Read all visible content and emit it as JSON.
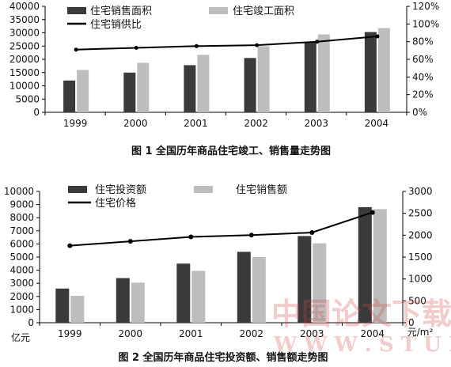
{
  "chart_data": [
    {
      "type": "bar",
      "caption": "图 1   全国历年商品住宅竣工、销售量走势图",
      "categories": [
        "1999",
        "2000",
        "2001",
        "2002",
        "2003",
        "2004"
      ],
      "series": [
        {
          "name": "住宅销售面积",
          "kind": "bar",
          "axis": "left",
          "color": "#3a3a3a",
          "values": [
            12000,
            15000,
            17800,
            20500,
            26500,
            30300
          ]
        },
        {
          "name": "住宅竣工面积",
          "kind": "bar",
          "axis": "left",
          "color": "#bdbdbd",
          "values": [
            16000,
            18700,
            21700,
            25000,
            29400,
            31800
          ]
        },
        {
          "name": "住宅销供比",
          "kind": "line",
          "axis": "right",
          "color": "#000000",
          "values": [
            0.71,
            0.73,
            0.75,
            0.76,
            0.8,
            0.86
          ]
        }
      ],
      "y_left": {
        "min": 0,
        "max": 40000,
        "ticks": [
          "0",
          "5000",
          "10000",
          "15000",
          "20000",
          "25000",
          "30000",
          "35000",
          "40000"
        ]
      },
      "y_right": {
        "min": 0,
        "max": 1.2,
        "ticks": [
          "0%",
          "20%",
          "40%",
          "60%",
          "80%",
          "100%",
          "120%"
        ]
      },
      "xlabel": "",
      "grid": false,
      "legend_position": "top"
    },
    {
      "type": "bar",
      "caption": "图 2   全国历年商品住宅投资额、销售额走势图",
      "categories": [
        "1999",
        "2000",
        "2001",
        "2002",
        "2003",
        "2004"
      ],
      "series": [
        {
          "name": "住宅投资额",
          "kind": "bar",
          "axis": "left",
          "color": "#3a3a3a",
          "values": [
            2600,
            3400,
            4500,
            5400,
            6600,
            8800
          ]
        },
        {
          "name": "住宅销售额",
          "kind": "bar",
          "axis": "left",
          "color": "#bdbdbd",
          "values": [
            2050,
            3050,
            3950,
            5000,
            6050,
            8650
          ]
        },
        {
          "name": "住宅价格",
          "kind": "line",
          "axis": "right",
          "color": "#000000",
          "values": [
            1760,
            1860,
            1960,
            2000,
            2060,
            2520
          ]
        }
      ],
      "y_left": {
        "min": 0,
        "max": 10000,
        "unit": "亿元",
        "ticks": [
          "0",
          "1000",
          "2000",
          "3000",
          "4000",
          "5000",
          "6000",
          "7000",
          "8000",
          "9000",
          "10000"
        ]
      },
      "y_right": {
        "min": 0,
        "max": 3000,
        "unit": "元/m²",
        "ticks": [
          "0",
          "500",
          "1000",
          "1500",
          "2000",
          "2500",
          "3000"
        ]
      },
      "xlabel": "",
      "grid": false,
      "legend_position": "top"
    }
  ],
  "watermark": {
    "cn": "中国论文下载",
    "en": "W W W . S T U D A ."
  }
}
